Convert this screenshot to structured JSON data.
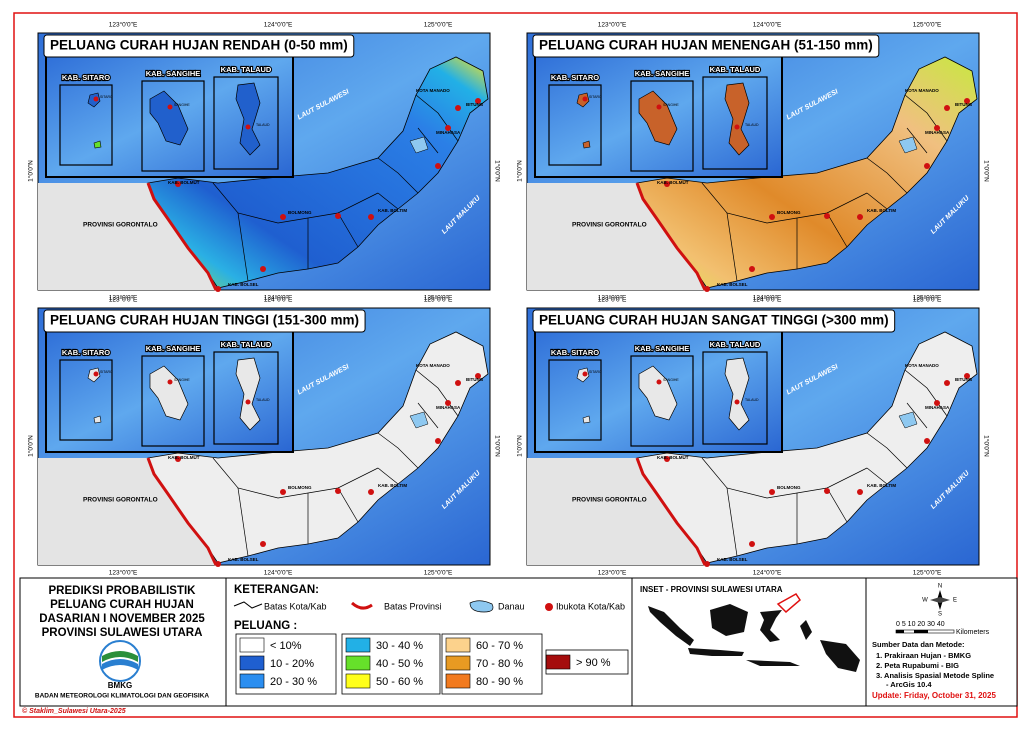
{
  "panels": [
    {
      "title": "PELUANG CURAH HUJAN RENDAH (0-50 mm)"
    },
    {
      "title": "PELUANG CURAH HUJAN MENENGAH (51-150 mm)"
    },
    {
      "title": "PELUANG CURAH HUJAN TINGGI (151-300 mm)"
    },
    {
      "title": "PELUANG CURAH HUJAN SANGAT TINGGI (>300 mm)"
    }
  ],
  "inset_labels": [
    "KAB. SITARO",
    "KAB. SANGIHE",
    "KAB. TALAUD"
  ],
  "inset_towns": [
    "SITARO",
    "SANGIHE",
    "TALAUD"
  ],
  "coords": {
    "lon": [
      "123°0'0\"E",
      "124°0'0\"E",
      "125°0'0\"E"
    ],
    "lat": "1°0'0\"N"
  },
  "map_labels": {
    "gorontalo": "PROVINSI GORONTALO",
    "sulawesi_sea": "LAUT SULAWESI",
    "maluku_sea": "LAUT MALUKU",
    "bolmut": "KAB. BOLMUT",
    "bolsel": "KAB. BOLSEL",
    "boltim": "KAB. BOLTIM",
    "bolmong": "BOLMONG",
    "manado": "KOTA MANADO",
    "minahasa": "MINAHASA",
    "bitung": "BITUNG"
  },
  "title_block": {
    "lines": [
      "PREDIKSI PROBABILISTIK",
      "PELUANG CURAH HUJAN",
      "DASARIAN I NOVEMBER 2025",
      "PROVINSI SULAWESI UTARA"
    ],
    "logo": "BMKG",
    "agency": "BADAN METEOROLOGI KLIMATOLOGI DAN GEOFISIKA",
    "credit": "© Staklim_Sulawesi Utara-2025"
  },
  "legend": {
    "heading": "KETERANGAN:",
    "symbols": [
      "Batas Kota/Kab",
      "Batas Provinsi",
      "Danau",
      "Ibukota Kota/Kab"
    ],
    "classes_heading": "PELUANG :",
    "classes": [
      {
        "label": "< 10%",
        "color": "#ffffff"
      },
      {
        "label": "10 - 20%",
        "color": "#1f5fd0"
      },
      {
        "label": "20 - 30 %",
        "color": "#2b8ef0"
      },
      {
        "label": "30 - 40 %",
        "color": "#22b0e6"
      },
      {
        "label": "40 - 50 %",
        "color": "#66e02a"
      },
      {
        "label": "50 - 60 %",
        "color": "#ffff1a"
      },
      {
        "label": "60 - 70 %",
        "color": "#fcd28c"
      },
      {
        "label": "70 - 80 %",
        "color": "#e89a22"
      },
      {
        "label": "80 - 90 %",
        "color": "#f27a1e"
      },
      {
        "label": "> 90 %",
        "color": "#a50d0d"
      }
    ]
  },
  "inset_map": {
    "title": "INSET - PROVINSI SULAWESI UTARA"
  },
  "scale": {
    "numbers": "0 5 10 20 30 40",
    "unit": "Kilometers",
    "compass": [
      "N",
      "S",
      "E",
      "W"
    ]
  },
  "sources": {
    "heading": "Sumber Data dan Metode:",
    "items": [
      "1. Prakiraan Hujan - BMKG",
      "2. Peta Rupabumi - BIG",
      "3. Analisis Spasial Metode Spline",
      "- ArcGis 10.4"
    ],
    "update": "Update: Friday, October 31, 2025"
  }
}
